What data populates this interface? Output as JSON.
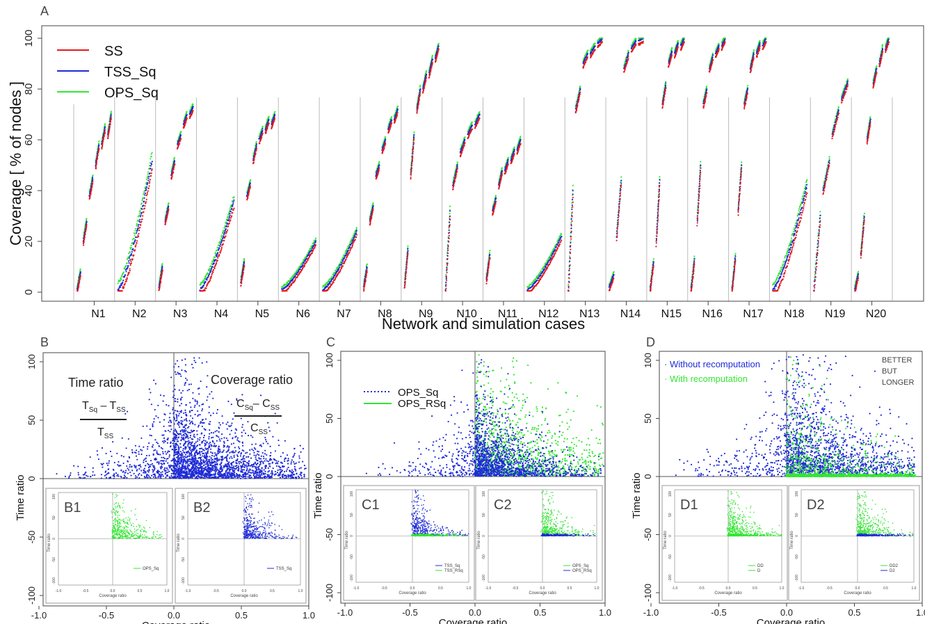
{
  "colors": {
    "ss": "#e31a1c",
    "tss": "#1f2bd6",
    "ops": "#33e633",
    "axis": "#333333",
    "grid": "#aaaaaa"
  },
  "panel_a": {
    "letter": "A",
    "ylabel": "Coverage [ % of nodes ]",
    "xlabel": "Network and simulation cases",
    "yticks": [
      "0",
      "20",
      "40",
      "60",
      "80",
      "100"
    ],
    "legend": [
      "SS",
      "TSS_Sq",
      "OPS_Sq"
    ]
  },
  "panel_b": {
    "letter": "B",
    "formula_time_title": "Time ratio",
    "formula_cov_title": "Coverage ratio",
    "formula_t_num": "T",
    "formula_t_sub1": "Sq",
    "formula_t_minus": " – T",
    "formula_t_sub2": "SS",
    "formula_t_den": "T",
    "formula_t_den_sub": "SS",
    "formula_c_num": "C",
    "formula_c_sub1": "Sq",
    "formula_c_minus": "– C",
    "formula_c_sub2": "SS",
    "formula_c_den": "C",
    "formula_c_den_sub": "SS",
    "inset1_label": "B1",
    "inset1_legend": "OPS_Sq",
    "inset2_label": "B2",
    "inset2_legend": "TSS_Sq"
  },
  "panel_c": {
    "letter": "C",
    "legend": [
      "OPS_Sq",
      "OPS_RSq"
    ],
    "inset1_label": "C1",
    "inset1_legend": [
      "TSS_Sq",
      "TSS_RSq"
    ],
    "inset2_label": "C2",
    "inset2_legend": [
      "OPS_Sq",
      "OPS_RSq"
    ]
  },
  "panel_d": {
    "letter": "D",
    "legend": [
      "Without recomputation",
      "With recomputation"
    ],
    "note": [
      "BETTER",
      "BUT",
      "LONGER"
    ],
    "inset1_label": "D1",
    "inset1_legend": [
      "DD",
      "D"
    ],
    "inset2_label": "D2",
    "inset2_legend": [
      "DD2",
      "D2"
    ]
  },
  "shared_axes": {
    "xlabel": "Coverage ratio",
    "ylabel": "Time ratio",
    "xticks": [
      "-1.0",
      "-0.5",
      "0.0",
      "0.5",
      "1.0"
    ],
    "yticks": [
      "-100",
      "-50",
      "0",
      "50",
      "100"
    ]
  },
  "inset_axes": {
    "xlabel": "Coverage ratio",
    "ylabel": "Time ratio",
    "xticks": [
      "-1.0",
      "-0.5",
      "0.0",
      "0.5",
      "1.0"
    ],
    "yticks": [
      "100",
      "50",
      "0",
      "-50",
      "-100"
    ]
  },
  "chart_data": [
    {
      "type": "scatter",
      "panel": "A",
      "xlabel": "Network and simulation cases",
      "ylabel": "Coverage [ % of nodes ]",
      "ylim": [
        0,
        100
      ],
      "categories": [
        "N1",
        "N2",
        "N3",
        "N4",
        "N5",
        "N6",
        "N7",
        "N8",
        "N9",
        "N10",
        "N11",
        "N12",
        "N13",
        "N14",
        "N15",
        "N16",
        "N17",
        "N18",
        "N19",
        "N20"
      ],
      "series": [
        {
          "name": "SS",
          "color": "#e31a1c"
        },
        {
          "name": "TSS_Sq",
          "color": "#1f2bd6"
        },
        {
          "name": "OPS_Sq",
          "color": "#33e633"
        }
      ],
      "clusters": [
        [
          [
            1,
            8
          ],
          [
            20,
            28
          ],
          [
            38,
            45
          ],
          [
            50,
            58
          ],
          [
            58,
            65
          ],
          [
            62,
            70
          ]
        ],
        [
          [
            1,
            52
          ]
        ],
        [
          [
            2,
            10
          ],
          [
            28,
            34
          ],
          [
            46,
            52
          ],
          [
            58,
            62
          ],
          [
            66,
            70
          ],
          [
            70,
            73
          ]
        ],
        [
          [
            1,
            36
          ]
        ],
        [
          [
            4,
            12
          ],
          [
            38,
            43
          ],
          [
            52,
            58
          ],
          [
            60,
            64
          ],
          [
            64,
            68
          ],
          [
            66,
            70
          ]
        ],
        [
          [
            1,
            20
          ]
        ],
        [
          [
            1,
            24
          ]
        ],
        [
          [
            2,
            10
          ],
          [
            28,
            34
          ],
          [
            46,
            50
          ],
          [
            56,
            60
          ],
          [
            64,
            68
          ],
          [
            68,
            72
          ]
        ],
        [
          [
            3,
            17
          ],
          [
            46,
            62
          ],
          [
            72,
            80
          ],
          [
            80,
            86
          ],
          [
            86,
            92
          ],
          [
            92,
            97
          ]
        ],
        [
          [
            1,
            32
          ],
          [
            42,
            50
          ],
          [
            55,
            60
          ],
          [
            62,
            66
          ],
          [
            66,
            70
          ]
        ],
        [
          [
            5,
            15
          ],
          [
            32,
            37
          ],
          [
            42,
            48
          ],
          [
            48,
            52
          ],
          [
            52,
            56
          ],
          [
            56,
            60
          ]
        ],
        [
          [
            1,
            22
          ]
        ],
        [
          [
            1,
            40
          ],
          [
            72,
            80
          ],
          [
            90,
            94
          ],
          [
            94,
            97
          ],
          [
            98,
            100
          ]
        ],
        [
          [
            2,
            7
          ],
          [
            22,
            44
          ],
          [
            88,
            94
          ],
          [
            96,
            99
          ],
          [
            99,
            100
          ]
        ],
        [
          [
            1,
            12
          ],
          [
            20,
            44
          ],
          [
            74,
            82
          ],
          [
            90,
            95
          ],
          [
            94,
            98
          ],
          [
            97,
            100
          ]
        ],
        [
          [
            1,
            13
          ],
          [
            28,
            50
          ],
          [
            74,
            80
          ],
          [
            88,
            93
          ],
          [
            94,
            97
          ],
          [
            97,
            100
          ]
        ],
        [
          [
            1,
            14
          ],
          [
            32,
            50
          ],
          [
            74,
            80
          ],
          [
            88,
            94
          ],
          [
            94,
            98
          ],
          [
            97,
            100
          ]
        ],
        [
          [
            1,
            42
          ]
        ],
        [
          [
            1,
            30
          ],
          [
            40,
            52
          ],
          [
            62,
            72
          ],
          [
            76,
            83
          ]
        ],
        [
          [
            1,
            7
          ],
          [
            15,
            30
          ],
          [
            60,
            68
          ],
          [
            82,
            88
          ],
          [
            90,
            96
          ],
          [
            96,
            100
          ]
        ]
      ]
    },
    {
      "type": "scatter",
      "panel": "B",
      "xlabel": "Coverage ratio",
      "ylabel": "Time ratio",
      "xlim": [
        -1.0,
        1.0
      ],
      "ylim": [
        -100,
        100
      ],
      "series": [
        {
          "color": "#1f2bd6"
        }
      ],
      "insets": [
        {
          "label": "B1",
          "series": [
            {
              "name": "OPS_Sq",
              "color": "#33e633"
            }
          ]
        },
        {
          "label": "B2",
          "series": [
            {
              "name": "TSS_Sq",
              "color": "#1f2bd6"
            }
          ]
        }
      ]
    },
    {
      "type": "scatter",
      "panel": "C",
      "xlabel": "Coverage ratio",
      "ylabel": "Time ratio",
      "xlim": [
        -1.0,
        1.0
      ],
      "ylim": [
        -100,
        100
      ],
      "series": [
        {
          "name": "OPS_Sq",
          "color": "#1f2bd6"
        },
        {
          "name": "OPS_RSq",
          "color": "#33e633"
        }
      ],
      "insets": [
        {
          "label": "C1",
          "series": [
            {
              "name": "TSS_Sq"
            },
            {
              "name": "TSS_RSq"
            }
          ]
        },
        {
          "label": "C2",
          "series": [
            {
              "name": "OPS_Sq"
            },
            {
              "name": "OPS_RSq"
            }
          ]
        }
      ]
    },
    {
      "type": "scatter",
      "panel": "D",
      "xlabel": "Coverage ratio",
      "ylabel": "Time ratio",
      "xlim": [
        -1.0,
        1.0
      ],
      "ylim": [
        -100,
        100
      ],
      "series": [
        {
          "name": "Without recomputation",
          "color": "#1f2bd6"
        },
        {
          "name": "With recomputation",
          "color": "#33e633"
        }
      ],
      "insets": [
        {
          "label": "D1",
          "series": [
            {
              "name": "DD"
            },
            {
              "name": "D"
            }
          ]
        },
        {
          "label": "D2",
          "series": [
            {
              "name": "DD2"
            },
            {
              "name": "D2"
            }
          ]
        }
      ]
    }
  ]
}
